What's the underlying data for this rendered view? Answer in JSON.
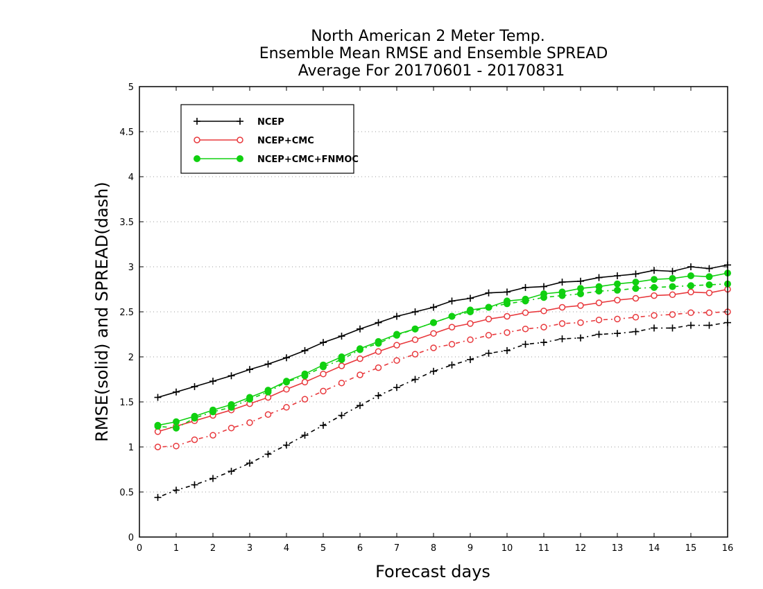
{
  "chart_data": {
    "type": "line",
    "title": [
      "North American 2 Meter Temp.",
      "Ensemble Mean RMSE and Ensemble SPREAD",
      "Average For 20170601 - 20170831"
    ],
    "xlabel": "Forecast days",
    "ylabel": "RMSE(solid) and SPREAD(dash)",
    "xlim": [
      0,
      16
    ],
    "ylim": [
      0,
      5
    ],
    "xticks": [
      0,
      1,
      2,
      3,
      4,
      5,
      6,
      7,
      8,
      9,
      10,
      11,
      12,
      13,
      14,
      15,
      16
    ],
    "yticks": [
      0,
      0.5,
      1,
      1.5,
      2,
      2.5,
      3,
      3.5,
      4,
      4.5,
      5
    ],
    "ytick_labels": [
      "0",
      "0.5",
      "1",
      "1.5",
      "2",
      "2.5",
      "3",
      "3.5",
      "4",
      "4.5",
      "5"
    ],
    "grid": "horizontal dotted",
    "legend_position": "top-left",
    "x": [
      0.5,
      1,
      1.5,
      2,
      2.5,
      3,
      3.5,
      4,
      4.5,
      5,
      5.5,
      6,
      6.5,
      7,
      7.5,
      8,
      8.5,
      9,
      9.5,
      10,
      10.5,
      11,
      11.5,
      12,
      12.5,
      13,
      13.5,
      14,
      14.5,
      15,
      15.5,
      16
    ],
    "series": [
      {
        "name": "NCEP",
        "color": "#000000",
        "marker": "plus",
        "rmse": [
          1.55,
          1.61,
          1.67,
          1.73,
          1.79,
          1.86,
          1.92,
          1.99,
          2.07,
          2.16,
          2.23,
          2.31,
          2.38,
          2.45,
          2.5,
          2.55,
          2.62,
          2.65,
          2.71,
          2.72,
          2.77,
          2.78,
          2.83,
          2.84,
          2.88,
          2.9,
          2.92,
          2.96,
          2.95,
          3.0,
          2.98,
          3.02
        ],
        "spread": [
          0.44,
          0.52,
          0.58,
          0.65,
          0.73,
          0.82,
          0.92,
          1.02,
          1.13,
          1.24,
          1.35,
          1.46,
          1.57,
          1.66,
          1.75,
          1.84,
          1.91,
          1.97,
          2.04,
          2.07,
          2.14,
          2.16,
          2.2,
          2.21,
          2.25,
          2.26,
          2.28,
          2.32,
          2.32,
          2.35,
          2.35,
          2.38
        ]
      },
      {
        "name": "NCEP+CMC",
        "color": "#e8383c",
        "marker": "open-circle",
        "rmse": [
          1.17,
          1.23,
          1.29,
          1.35,
          1.41,
          1.48,
          1.55,
          1.64,
          1.72,
          1.81,
          1.9,
          1.98,
          2.06,
          2.13,
          2.19,
          2.26,
          2.33,
          2.37,
          2.42,
          2.45,
          2.49,
          2.51,
          2.55,
          2.57,
          2.6,
          2.63,
          2.65,
          2.68,
          2.69,
          2.72,
          2.71,
          2.75
        ],
        "spread": [
          1.0,
          1.01,
          1.08,
          1.13,
          1.21,
          1.27,
          1.36,
          1.44,
          1.53,
          1.62,
          1.71,
          1.8,
          1.88,
          1.96,
          2.03,
          2.1,
          2.14,
          2.19,
          2.24,
          2.27,
          2.31,
          2.33,
          2.37,
          2.38,
          2.41,
          2.42,
          2.44,
          2.46,
          2.47,
          2.49,
          2.49,
          2.5
        ]
      },
      {
        "name": "NCEP+CMC+FNMOC",
        "color": "#10d010",
        "marker": "filled-circle",
        "rmse": [
          1.24,
          1.28,
          1.34,
          1.41,
          1.47,
          1.55,
          1.63,
          1.73,
          1.81,
          1.91,
          2.0,
          2.09,
          2.17,
          2.25,
          2.31,
          2.38,
          2.45,
          2.52,
          2.55,
          2.62,
          2.64,
          2.7,
          2.72,
          2.76,
          2.78,
          2.81,
          2.83,
          2.86,
          2.87,
          2.9,
          2.89,
          2.93
        ],
        "spread": [
          1.23,
          1.21,
          1.32,
          1.39,
          1.44,
          1.53,
          1.61,
          1.72,
          1.79,
          1.89,
          1.97,
          2.08,
          2.15,
          2.24,
          2.31,
          2.38,
          2.45,
          2.5,
          2.55,
          2.59,
          2.62,
          2.66,
          2.68,
          2.7,
          2.73,
          2.74,
          2.76,
          2.77,
          2.78,
          2.79,
          2.8,
          2.81
        ]
      }
    ]
  }
}
